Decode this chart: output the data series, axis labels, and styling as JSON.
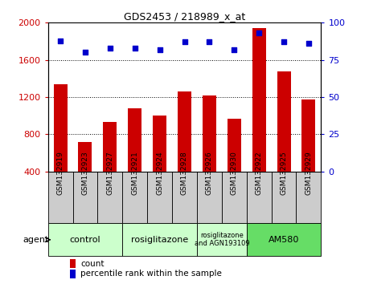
{
  "title": "GDS2453 / 218989_x_at",
  "samples": [
    "GSM132919",
    "GSM132923",
    "GSM132927",
    "GSM132921",
    "GSM132924",
    "GSM132928",
    "GSM132926",
    "GSM132930",
    "GSM132922",
    "GSM132925",
    "GSM132929"
  ],
  "counts": [
    1340,
    720,
    930,
    1080,
    1000,
    1260,
    1220,
    970,
    1940,
    1480,
    1170
  ],
  "percentiles": [
    88,
    80,
    83,
    83,
    82,
    87,
    87,
    82,
    93,
    87,
    86
  ],
  "ylim_left": [
    400,
    2000
  ],
  "ylim_right": [
    0,
    100
  ],
  "yticks_left": [
    400,
    800,
    1200,
    1600,
    2000
  ],
  "yticks_right": [
    0,
    25,
    50,
    75,
    100
  ],
  "bar_color": "#cc0000",
  "dot_color": "#0000cc",
  "agent_groups": [
    {
      "label": "control",
      "start": 0,
      "end": 3,
      "color": "#ccffcc"
    },
    {
      "label": "rosiglitazone",
      "start": 3,
      "end": 6,
      "color": "#ccffcc"
    },
    {
      "label": "rosiglitazone\nand AGN193109",
      "start": 6,
      "end": 8,
      "color": "#ccffcc"
    },
    {
      "label": "AM580",
      "start": 8,
      "end": 11,
      "color": "#66dd66"
    }
  ],
  "bar_bottom": 400,
  "xlabel_color": "#cc0000",
  "ylabel_right_color": "#0000cc",
  "sample_cell_color": "#cccccc",
  "bg_color": "#ffffff"
}
